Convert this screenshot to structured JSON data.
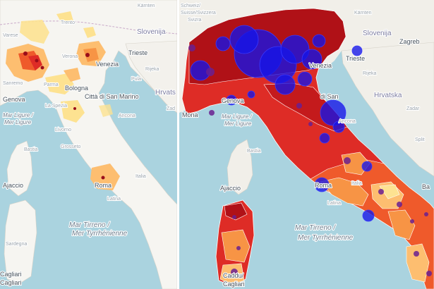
{
  "left_map": {
    "labels": {
      "karnten": "Kärnten",
      "trento": "Trento",
      "verona": "Verona",
      "varese": "Varese",
      "venezia": "Venezia",
      "slovenija": "Slovenija",
      "trieste": "Trieste",
      "rijeka": "Rijeka",
      "pula": "Pula",
      "hrvats": "Hrvats",
      "genova": "Genova",
      "sanremo": "Sanremo",
      "parma": "Parma",
      "bologna": "Bologna",
      "la_spezia": "La Spezia",
      "san_marino": "Città di San Marino",
      "ancona": "Ancona",
      "zadar": "Zad",
      "mar_ligure": "Mar Ligure /",
      "mer_ligure": "Mer Ligure",
      "livorno": "Livorno",
      "grosseto": "Grosseto",
      "roma": "Roma",
      "italia": "Italia",
      "latina": "Latina",
      "bastia": "Bastia",
      "ajaccio": "Ajaccio",
      "mar_tirreno": "Mar Tirreno /",
      "mer_tyrrhenienne": "Mer Tyrrhénienne",
      "sardegna": "Sardegna",
      "cagliari_top": "Cagliari",
      "cagliari": "Cagliari"
    }
  },
  "right_map": {
    "labels": {
      "schweiz": "Schweiz/",
      "suisse": "Suisse/Svizzera",
      "svizra": "Svizra",
      "karnten": "Kärnten",
      "slovenija": "Slovenija",
      "zagreb": "Zagreb",
      "trieste": "Trieste",
      "rijeka": "Rijeka",
      "hrvatska": "Hrvatska",
      "venezia": "Venezia",
      "genova": "Genova",
      "monaco": "Mona",
      "san_marino": "di San",
      "ancona": "Ancona",
      "zadar": "Zadar",
      "split": "Split",
      "mar_ligure": "Mar Ligure /",
      "mer_ligure": "Mer Ligure",
      "bastia": "Bastia",
      "ajaccio": "Ajaccio",
      "roma": "Roma",
      "italia": "Italia",
      "latina": "Latina",
      "mar_tirreno": "Mar Tirreno /",
      "mer_tyrrhenienne": "Mer Tyrrhénienne",
      "bari": "Ba",
      "cagliari_top": "Caddu/",
      "cagliari": "Cagliari"
    }
  },
  "colors": {
    "sea": "#aad3df",
    "land": "#f1efe9",
    "faded_land": "#f6f5f1",
    "dark_red": "#b01117",
    "red": "#de2c26",
    "orange_red": "#ef5a2b",
    "orange": "#f79445",
    "light_orange": "#fdbe70",
    "yellow": "#fde291",
    "blue_bubble": "#1515e8",
    "purple_bubble": "#6a2090"
  }
}
